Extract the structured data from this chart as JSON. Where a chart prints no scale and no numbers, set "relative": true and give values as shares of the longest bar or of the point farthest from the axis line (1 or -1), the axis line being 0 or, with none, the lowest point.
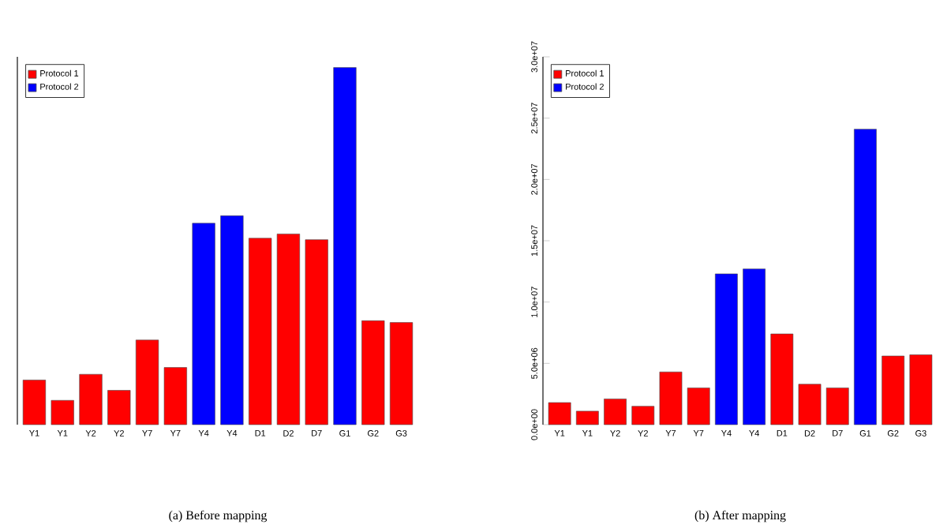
{
  "chart_data": [
    {
      "type": "bar",
      "relative": true,
      "categories": [
        "Y1",
        "Y1",
        "Y2",
        "Y2",
        "Y7",
        "Y7",
        "Y4",
        "Y4",
        "D1",
        "D2",
        "D7",
        "G1",
        "G2",
        "G3"
      ],
      "series": [
        {
          "name": "Protocol 1",
          "color": "#ff0000",
          "values": [
            0.125,
            0.068,
            0.141,
            0.096,
            0.237,
            0.16,
            null,
            null,
            0.522,
            0.534,
            0.518,
            null,
            0.291,
            0.286
          ]
        },
        {
          "name": "Protocol 2",
          "color": "#0000ff",
          "values": [
            null,
            null,
            null,
            null,
            null,
            null,
            0.564,
            0.585,
            null,
            null,
            null,
            1,
            null,
            null
          ]
        }
      ],
      "legend": "top left",
      "annotations": [
        "(a) Before mapping"
      ]
    },
    {
      "type": "bar",
      "categories": [
        "Y1",
        "Y1",
        "Y2",
        "Y2",
        "Y7",
        "Y7",
        "Y4",
        "Y4",
        "D1",
        "D2",
        "D7",
        "G1",
        "G2",
        "G3"
      ],
      "series": [
        {
          "name": "Protocol 1",
          "color": "#ff0000",
          "values": [
            1800000,
            1100000,
            2100000,
            1500000,
            4300000,
            3000000,
            null,
            null,
            7400000,
            3300000,
            3000000,
            null,
            5600000,
            5700000
          ]
        },
        {
          "name": "Protocol 2",
          "color": "#0000ff",
          "values": [
            null,
            null,
            null,
            null,
            null,
            null,
            12300000,
            12700000,
            null,
            null,
            null,
            24100000,
            null,
            null
          ]
        }
      ],
      "ylim": [
        0,
        30000000
      ],
      "yticks": [
        {
          "value": 0,
          "label": "0.0e+00"
        },
        {
          "value": 5000000,
          "label": "5.0e+06"
        },
        {
          "value": 10000000,
          "label": "1.0e+07"
        },
        {
          "value": 15000000,
          "label": "1.5e+07"
        },
        {
          "value": 20000000,
          "label": "2.0e+07"
        },
        {
          "value": 25000000,
          "label": "2.5e+07"
        },
        {
          "value": 30000000,
          "label": "3.0e+07"
        }
      ],
      "legend": "top left",
      "annotations": [
        "(b) After mapping"
      ]
    }
  ]
}
